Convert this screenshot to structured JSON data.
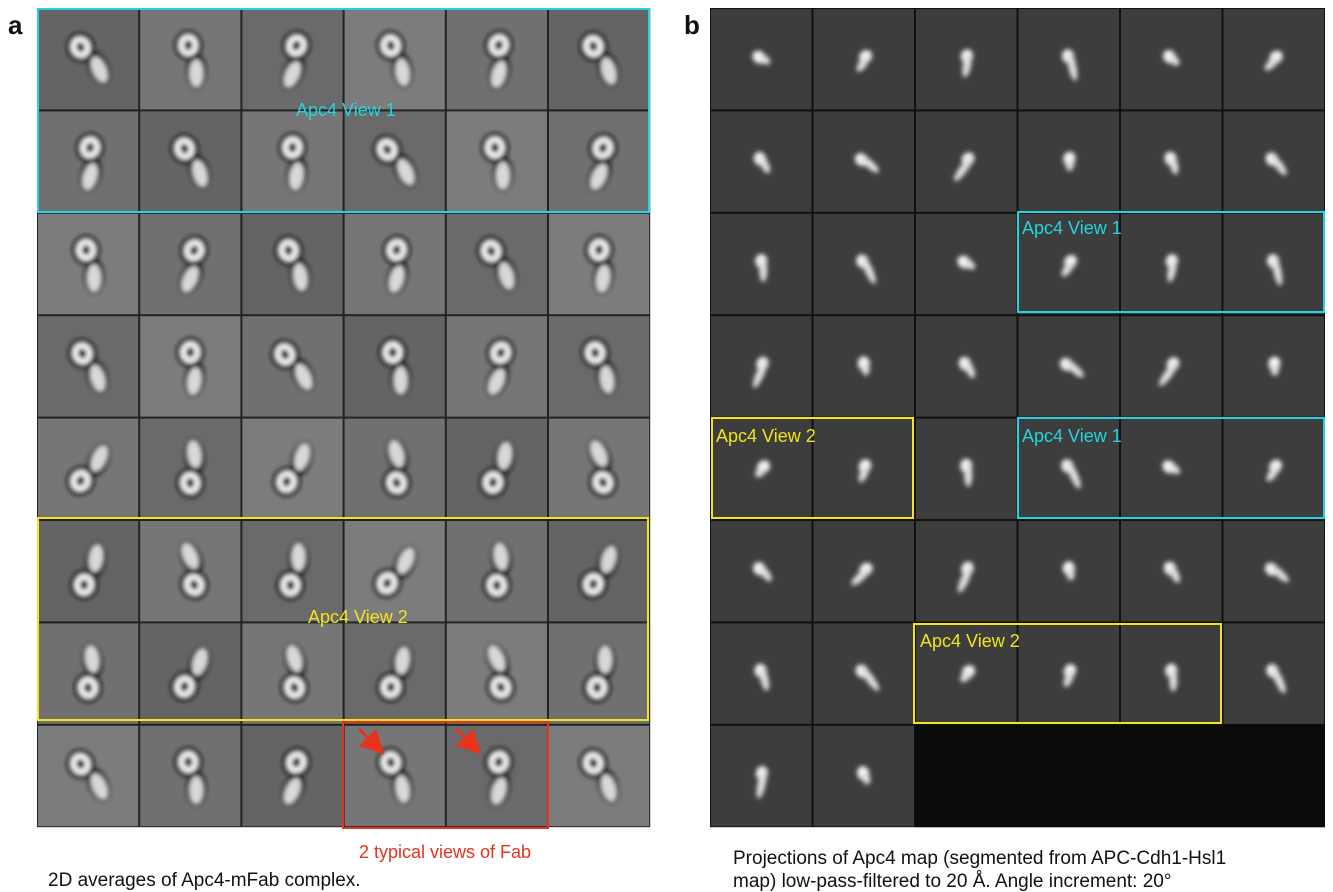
{
  "panel_a": {
    "letter": "a",
    "box_labels": [
      "Apc4 View 1",
      "Apc4 View 2"
    ],
    "fab_label": "2 typical views of Fab",
    "caption": "2D averages of Apc4-mFab complex."
  },
  "panel_b": {
    "letter": "b",
    "box_labels": [
      "Apc4 View 1",
      "Apc4 View 2",
      "Apc4 View 1",
      "Apc4 View 2"
    ],
    "caption_lines": [
      "Projections of Apc4 map (segmented from APC-Cdh1-Hsl1",
      "map) low-pass-filtered to 20 Å. Angle increment: 20°"
    ]
  }
}
